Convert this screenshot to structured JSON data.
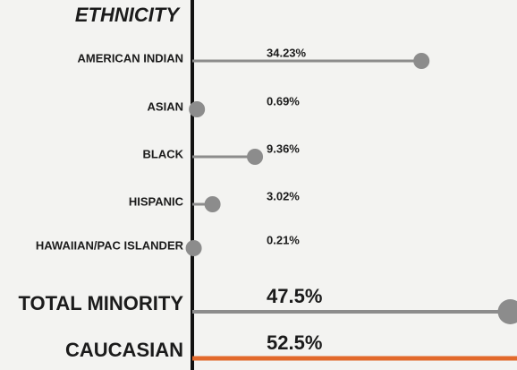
{
  "chart_data": {
    "type": "lollipop",
    "title": "ETHNICITY",
    "categories": [
      "AMERICAN INDIAN",
      "ASIAN",
      "BLACK",
      "HISPANIC",
      "HAWAIIAN/PAC ISLANDER",
      "TOTAL MINORITY",
      "CAUCASIAN"
    ],
    "values": [
      34.23,
      0.69,
      9.36,
      3.02,
      0.21,
      47.5,
      52.5
    ],
    "value_labels": [
      "34.23%",
      "0.69%",
      "9.36%",
      "3.02%",
      "0.21%",
      "47.5%",
      "52.5%"
    ],
    "colors": [
      "#8c8c8c",
      "#8c8c8c",
      "#8c8c8c",
      "#8c8c8c",
      "#8c8c8c",
      "#8c8c8c",
      "#e2692b"
    ],
    "title_color": "#e2692b",
    "xlim": [
      0,
      48.5
    ]
  }
}
